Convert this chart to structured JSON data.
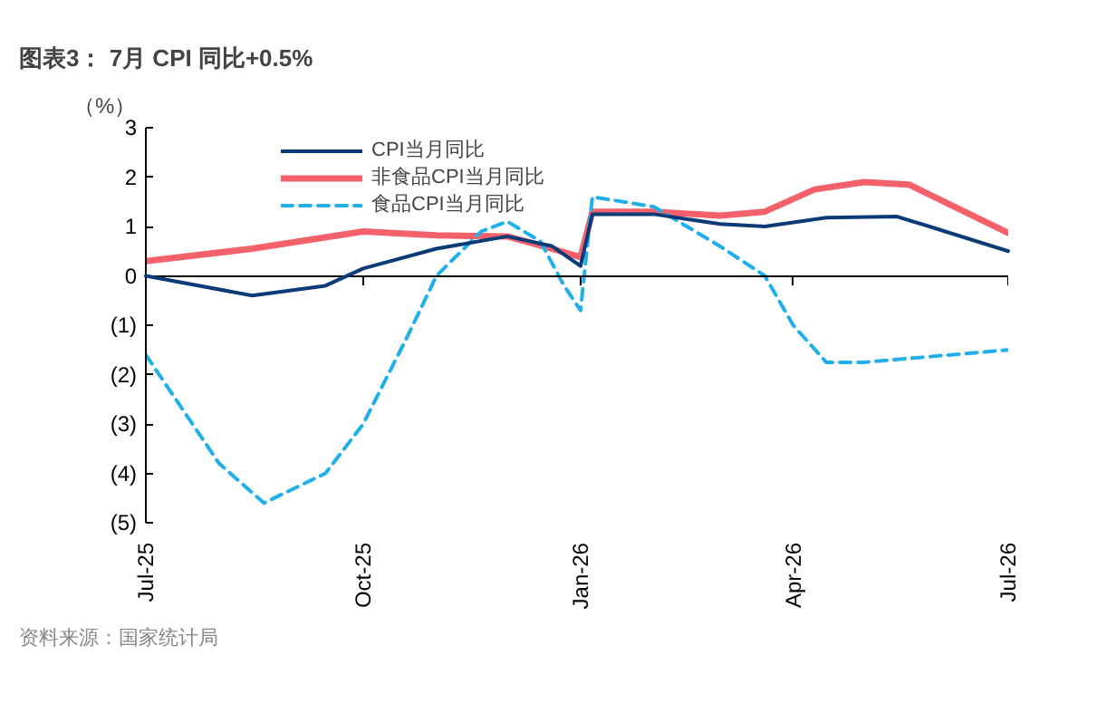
{
  "chart_data": {
    "type": "line",
    "title": "图表3： 7月 CPI 同比+0.5%",
    "ylabel": "（%）",
    "annotations": [
      "资料来源：国家统计局"
    ],
    "xlim": [
      "2025-07-01",
      "2026-07-01"
    ],
    "xticks": [
      {
        "value": "2025-07-01",
        "label": "Jul-25"
      },
      {
        "value": "2025-10-01",
        "label": "Oct-25"
      },
      {
        "value": "2026-01-01",
        "label": "Jan-26"
      },
      {
        "value": "2026-04-01",
        "label": "Apr-26"
      },
      {
        "value": "2026-07-01",
        "label": "Jul-26"
      }
    ],
    "ylim": [
      -5,
      3
    ],
    "yticks": [
      {
        "value": -5,
        "label": "(5)"
      },
      {
        "value": -4,
        "label": "(4)"
      },
      {
        "value": -3,
        "label": "(3)"
      },
      {
        "value": -2,
        "label": "(2)"
      },
      {
        "value": -1,
        "label": "(1)"
      },
      0,
      1,
      2,
      3
    ],
    "legend": "top",
    "marker": "none",
    "series": [
      {
        "name": "CPI当月同比",
        "color": "#0b3a78",
        "line_style": "solid",
        "x": [
          "2025-07-01",
          "2025-08-15",
          "2025-09-15",
          "2025-10-01",
          "2025-11-01",
          "2025-12-01",
          "2025-12-20",
          "2026-01-01",
          "2026-01-06",
          "2026-02-01",
          "2026-03-01",
          "2026-03-20",
          "2026-04-15",
          "2026-05-15",
          "2026-06-01",
          "2026-07-01"
        ],
        "values": [
          0,
          -0.4,
          -0.2,
          0.15,
          0.55,
          0.8,
          0.6,
          0.2,
          1.25,
          1.25,
          1.05,
          1.0,
          1.18,
          1.2,
          0.95,
          0.5
        ]
      },
      {
        "name": "非食品CPI当月同比",
        "color": "#f4616a",
        "line_style": "solid",
        "x": [
          "2025-07-01",
          "2025-08-15",
          "2025-10-01",
          "2025-11-01",
          "2025-12-01",
          "2025-12-20",
          "2026-01-01",
          "2026-01-06",
          "2026-02-01",
          "2026-03-01",
          "2026-03-20",
          "2026-04-10",
          "2026-05-01",
          "2026-05-20",
          "2026-07-01"
        ],
        "values": [
          0.3,
          0.55,
          0.9,
          0.82,
          0.8,
          0.55,
          0.38,
          1.3,
          1.3,
          1.22,
          1.3,
          1.75,
          1.9,
          1.85,
          0.87
        ]
      },
      {
        "name": "食品CPI当月同比",
        "color": "#1fb0ec",
        "line_style": "dashed",
        "x": [
          "2025-07-01",
          "2025-08-01",
          "2025-08-20",
          "2025-09-15",
          "2025-10-01",
          "2025-10-20",
          "2025-11-01",
          "2025-11-20",
          "2025-12-01",
          "2025-12-15",
          "2025-12-25",
          "2026-01-01",
          "2026-01-06",
          "2026-02-01",
          "2026-03-01",
          "2026-03-20",
          "2026-04-01",
          "2026-04-15",
          "2026-05-01",
          "2026-07-01"
        ],
        "values": [
          -1.6,
          -3.8,
          -4.6,
          -4.0,
          -3.0,
          -1.2,
          0,
          0.9,
          1.1,
          0.7,
          -0.2,
          -0.7,
          1.6,
          1.4,
          0.6,
          0,
          -1.0,
          -1.75,
          -1.75,
          -1.5
        ]
      }
    ]
  }
}
